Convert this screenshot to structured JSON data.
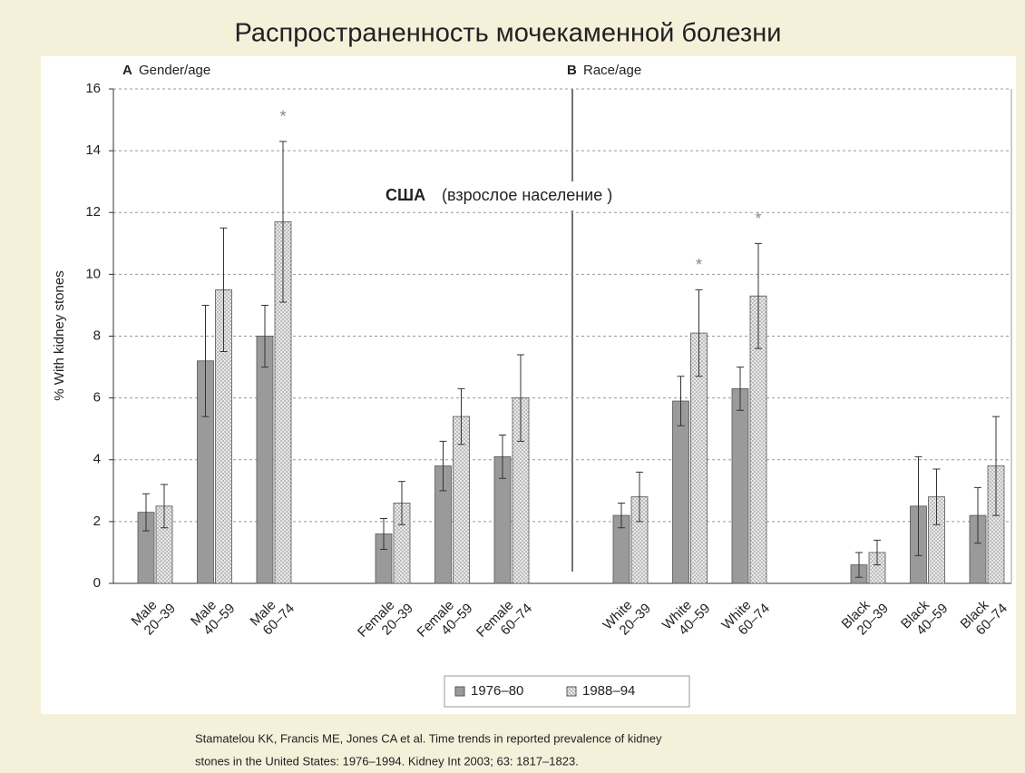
{
  "chart_data": {
    "type": "bar",
    "title": "Распространенность мочекаменной болезни",
    "panel_labels": [
      {
        "letter": "A",
        "text": "Gender/age"
      },
      {
        "letter": "B",
        "text": "Race/age"
      }
    ],
    "annotation": {
      "bold": "США",
      "text": "(взрослое население )"
    },
    "y_label": "% With kidney stones",
    "categories": [
      "Male 20–39",
      "Male 40–59",
      "Male 60–74",
      "Female 20–39",
      "Female 40–59",
      "Female 60–74",
      "White 20–39",
      "White 40–59",
      "White 60–74",
      "Black 20–39",
      "Black 40–59",
      "Black 60–74"
    ],
    "series": [
      {
        "name": "1976–80",
        "color": "#9a9a9a",
        "values": [
          2.3,
          7.2,
          8.0,
          1.6,
          3.8,
          4.1,
          2.2,
          5.9,
          6.3,
          0.6,
          2.5,
          2.2
        ],
        "errors": [
          0.6,
          1.8,
          1.0,
          0.5,
          0.8,
          0.7,
          0.4,
          0.8,
          0.7,
          0.4,
          1.6,
          0.9
        ]
      },
      {
        "name": "1988–94",
        "color": "#e6e6e6",
        "values": [
          2.5,
          9.5,
          11.7,
          2.6,
          5.4,
          6.0,
          2.8,
          8.1,
          9.3,
          1.0,
          2.8,
          3.8
        ],
        "errors": [
          0.7,
          2.0,
          2.6,
          0.7,
          0.9,
          1.4,
          0.8,
          1.4,
          1.7,
          0.4,
          0.9,
          1.6
        ]
      }
    ],
    "asterisks": [
      {
        "text": "*",
        "category": "Male 60–74"
      },
      {
        "text": "*",
        "category": "White 40–59"
      },
      {
        "text": "*",
        "category": "White 60–74"
      }
    ],
    "ylim": [
      0,
      16
    ],
    "yticks": [
      0,
      2,
      4,
      6,
      8,
      10,
      12,
      14,
      16
    ],
    "grid": true,
    "legend": "bottom",
    "citation": [
      "Stamatelou KK, Francis ME, Jones CA et al. Time trends in reported prevalence of kidney",
      "stones in the United States: 1976–1994. Kidney Int    2003; 63: 1817–1823."
    ]
  }
}
